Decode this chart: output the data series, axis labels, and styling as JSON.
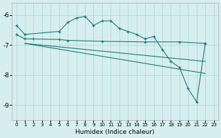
{
  "xlabel": "Humidex (Indice chaleur)",
  "bg_color": "#d6eef0",
  "grid_color": "#b0d8dc",
  "line_color": "#1a7a72",
  "xlim": [
    -0.5,
    23.5
  ],
  "ylim": [
    -9.5,
    -5.6
  ],
  "yticks": [
    -9,
    -8,
    -7,
    -6
  ],
  "xticks": [
    0,
    1,
    2,
    3,
    4,
    5,
    6,
    7,
    8,
    9,
    10,
    11,
    12,
    13,
    14,
    15,
    16,
    17,
    18,
    19,
    20,
    21,
    22,
    23
  ],
  "curve1_x": [
    0,
    1,
    5,
    6,
    7,
    8,
    9,
    10,
    11,
    12,
    13,
    14,
    15,
    16,
    17,
    18,
    19,
    20,
    21,
    22
  ],
  "curve1_y": [
    -6.35,
    -6.65,
    -6.55,
    -6.25,
    -6.1,
    -6.05,
    -6.35,
    -6.2,
    -6.2,
    -6.45,
    -6.55,
    -6.65,
    -6.8,
    -6.72,
    -7.15,
    -7.55,
    -7.75,
    -8.45,
    -8.9,
    -6.95
  ],
  "curve2_x": [
    0,
    1,
    2,
    5,
    6,
    10,
    15,
    19,
    22
  ],
  "curve2_y": [
    -6.65,
    -6.8,
    -6.8,
    -6.82,
    -6.85,
    -6.88,
    -6.9,
    -6.9,
    -6.95
  ],
  "line1_x": [
    1,
    22
  ],
  "line1_y": [
    -6.95,
    -7.55
  ],
  "line2_x": [
    1,
    22
  ],
  "line2_y": [
    -6.95,
    -7.95
  ]
}
